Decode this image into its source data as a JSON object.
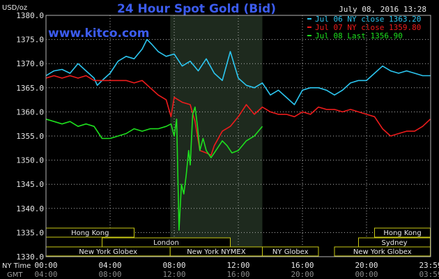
{
  "header": {
    "title": "24 Hour Spot Gold (Bid)",
    "date": "July 08, 2016 13:28",
    "watermark": "www.kitco.com",
    "y_unit": "USD/oz"
  },
  "colors": {
    "background": "#000000",
    "plot_area": "#000000",
    "shade": "#1e2a1e",
    "grid": "#b4b4b4",
    "jul06": "#2cc6f0",
    "jul07": "#ee1c1c",
    "jul08": "#1ee01e",
    "title": "#3c5cf0",
    "watermark": "#3c5cf0",
    "bar_fill": "#000000",
    "bar_border": "#c8c814",
    "text": "#e8e8e8"
  },
  "chart_data": {
    "type": "line",
    "title": "24 Hour Spot Gold (Bid)",
    "ylabel": "USD/oz",
    "ylim": [
      1330,
      1380
    ],
    "xlim": [
      0,
      24
    ],
    "grid": true,
    "legend_position": "top-right",
    "yticks": [
      "1380.0",
      "1375.0",
      "1370.0",
      "1365.0",
      "1360.0",
      "1355.0",
      "1350.0",
      "1345.0",
      "1340.0",
      "1335.0",
      "1330.0"
    ],
    "xticks": {
      "ny_label": "NY Time",
      "gmt_label": "GMT",
      "ny": [
        "00:00",
        "04:00",
        "08:00",
        "12:00",
        "16:00",
        "20:00",
        "23:59"
      ],
      "gmt": [
        "04:00",
        "08:00",
        "12:00",
        "16:00",
        "20:00",
        "00:00",
        "03:59"
      ]
    },
    "shaded_range": [
      7.75,
      13.5
    ],
    "series": [
      {
        "name": "Jul 06 NY close 1363.20",
        "key": "jul06",
        "points": [
          [
            0,
            1367.5
          ],
          [
            0.5,
            1368.5
          ],
          [
            1,
            1368.8
          ],
          [
            1.5,
            1368.0
          ],
          [
            2,
            1370.0
          ],
          [
            2.5,
            1368.5
          ],
          [
            3,
            1367.0
          ],
          [
            3.2,
            1365.5
          ],
          [
            3.5,
            1366.5
          ],
          [
            4,
            1368.0
          ],
          [
            4.5,
            1370.5
          ],
          [
            5,
            1371.5
          ],
          [
            5.5,
            1371.0
          ],
          [
            6,
            1373.0
          ],
          [
            6.3,
            1375.0
          ],
          [
            6.6,
            1374.0
          ],
          [
            7,
            1372.5
          ],
          [
            7.5,
            1371.5
          ],
          [
            8,
            1372.0
          ],
          [
            8.5,
            1369.5
          ],
          [
            9,
            1370.5
          ],
          [
            9.5,
            1368.5
          ],
          [
            10,
            1371.0
          ],
          [
            10.5,
            1368.0
          ],
          [
            11,
            1366.5
          ],
          [
            11.5,
            1372.5
          ],
          [
            12,
            1367.0
          ],
          [
            12.5,
            1365.5
          ],
          [
            13,
            1365.0
          ],
          [
            13.5,
            1366.0
          ],
          [
            14,
            1363.5
          ],
          [
            14.5,
            1364.5
          ],
          [
            15,
            1363.0
          ],
          [
            15.5,
            1361.5
          ],
          [
            16,
            1364.5
          ],
          [
            16.5,
            1365.0
          ],
          [
            17,
            1365.0
          ],
          [
            17.5,
            1364.5
          ],
          [
            18,
            1363.5
          ],
          [
            18.5,
            1364.5
          ],
          [
            19,
            1366.0
          ],
          [
            19.5,
            1366.5
          ],
          [
            20,
            1366.5
          ],
          [
            20.5,
            1368.0
          ],
          [
            21,
            1369.5
          ],
          [
            21.5,
            1368.5
          ],
          [
            22,
            1368.0
          ],
          [
            22.5,
            1368.5
          ],
          [
            23,
            1368.0
          ],
          [
            23.5,
            1367.5
          ],
          [
            23.98,
            1367.5
          ]
        ]
      },
      {
        "name": "Jul 07 NY close 1359.80",
        "key": "jul07",
        "points": [
          [
            0,
            1367.0
          ],
          [
            0.5,
            1367.5
          ],
          [
            1,
            1367.0
          ],
          [
            1.5,
            1367.5
          ],
          [
            2,
            1367.0
          ],
          [
            2.5,
            1367.5
          ],
          [
            3,
            1366.5
          ],
          [
            3.5,
            1366.5
          ],
          [
            4,
            1366.5
          ],
          [
            4.5,
            1366.5
          ],
          [
            5,
            1366.5
          ],
          [
            5.5,
            1366.0
          ],
          [
            6,
            1366.5
          ],
          [
            6.5,
            1365.0
          ],
          [
            7,
            1363.5
          ],
          [
            7.5,
            1362.5
          ],
          [
            7.8,
            1359.0
          ],
          [
            8,
            1363.0
          ],
          [
            8.5,
            1362.0
          ],
          [
            9,
            1361.5
          ],
          [
            9.3,
            1358.0
          ],
          [
            9.6,
            1352.0
          ],
          [
            10,
            1351.5
          ],
          [
            10.3,
            1351.0
          ],
          [
            10.5,
            1353.0
          ],
          [
            11,
            1356.0
          ],
          [
            11.5,
            1357.0
          ],
          [
            12,
            1359.0
          ],
          [
            12.5,
            1361.5
          ],
          [
            13,
            1359.5
          ],
          [
            13.5,
            1361.0
          ],
          [
            14,
            1360.0
          ],
          [
            14.5,
            1359.5
          ],
          [
            15,
            1359.5
          ],
          [
            15.5,
            1359.0
          ],
          [
            16,
            1360.0
          ],
          [
            16.5,
            1359.5
          ],
          [
            17,
            1361.0
          ],
          [
            17.5,
            1360.5
          ],
          [
            18,
            1360.5
          ],
          [
            18.5,
            1360.0
          ],
          [
            19,
            1360.5
          ],
          [
            19.5,
            1360.0
          ],
          [
            20,
            1359.5
          ],
          [
            20.5,
            1359.0
          ],
          [
            21,
            1356.5
          ],
          [
            21.5,
            1355.0
          ],
          [
            22,
            1355.5
          ],
          [
            22.5,
            1356.0
          ],
          [
            23,
            1356.0
          ],
          [
            23.5,
            1357.0
          ],
          [
            23.98,
            1358.5
          ]
        ]
      },
      {
        "name": "Jul 08 Last 1356.90",
        "key": "jul08",
        "points": [
          [
            0,
            1358.5
          ],
          [
            0.5,
            1358.0
          ],
          [
            1,
            1357.5
          ],
          [
            1.5,
            1358.0
          ],
          [
            2,
            1357.0
          ],
          [
            2.5,
            1357.5
          ],
          [
            3,
            1357.0
          ],
          [
            3.5,
            1354.5
          ],
          [
            4,
            1354.5
          ],
          [
            4.5,
            1355.0
          ],
          [
            5,
            1355.5
          ],
          [
            5.5,
            1356.5
          ],
          [
            6,
            1356.0
          ],
          [
            6.5,
            1356.5
          ],
          [
            7,
            1356.5
          ],
          [
            7.5,
            1357.0
          ],
          [
            7.8,
            1357.5
          ],
          [
            8,
            1355.0
          ],
          [
            8.15,
            1358.5
          ],
          [
            8.3,
            1335.5
          ],
          [
            8.45,
            1345.0
          ],
          [
            8.6,
            1343.0
          ],
          [
            8.75,
            1347.0
          ],
          [
            8.9,
            1352.0
          ],
          [
            9,
            1349.0
          ],
          [
            9.15,
            1359.5
          ],
          [
            9.3,
            1361.0
          ],
          [
            9.45,
            1357.0
          ],
          [
            9.6,
            1352.0
          ],
          [
            9.8,
            1354.5
          ],
          [
            10,
            1352.0
          ],
          [
            10.3,
            1350.5
          ],
          [
            10.6,
            1352.0
          ],
          [
            11,
            1354.0
          ],
          [
            11.3,
            1353.0
          ],
          [
            11.6,
            1351.5
          ],
          [
            12,
            1352.0
          ],
          [
            12.5,
            1354.0
          ],
          [
            13,
            1355.0
          ],
          [
            13.5,
            1357.0
          ]
        ]
      }
    ]
  },
  "session_bars": {
    "row1": [
      {
        "label": "Hong Kong",
        "start": 0,
        "end": 5.5
      },
      {
        "label": "Hong Kong",
        "start": 20.5,
        "end": 23.98
      }
    ],
    "row2": [
      {
        "label": "London",
        "start": 3.5,
        "end": 11.5
      },
      {
        "label": "Sydney",
        "start": 19.5,
        "end": 23.98
      }
    ],
    "row3": [
      {
        "label": "New York Globex",
        "start": 0,
        "end": 7.75
      },
      {
        "label": "New York NYMEX",
        "start": 7.75,
        "end": 13.5
      },
      {
        "label": "NY Globex",
        "start": 13.5,
        "end": 17.0
      },
      {
        "label": "New York Globex",
        "start": 18.0,
        "end": 23.98
      }
    ]
  }
}
